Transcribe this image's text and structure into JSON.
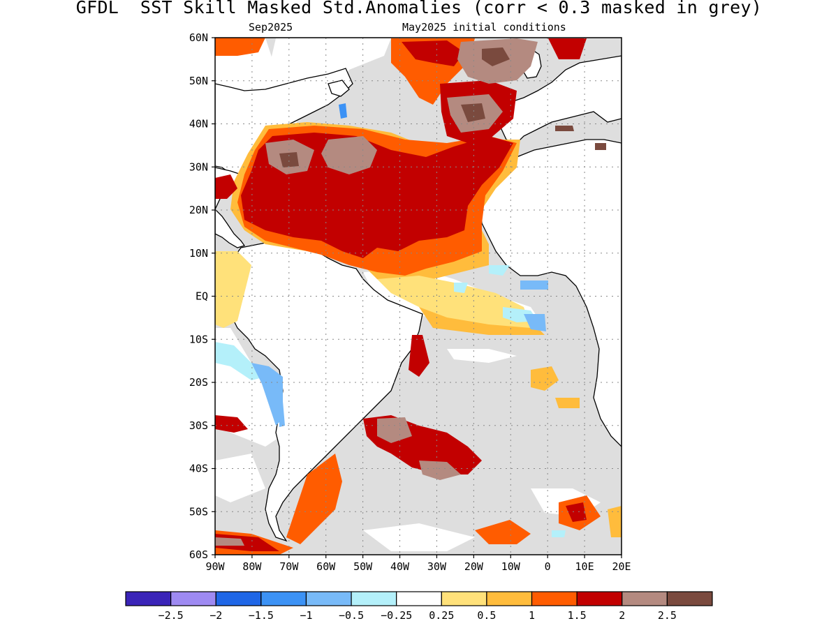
{
  "header": {
    "title": "GFDL  SST Skill Masked Std.Anomalies (corr < 0.3 masked in grey)",
    "target_month": "Sep2025",
    "init": "May2025 initial conditions"
  },
  "map": {
    "region": "Atlantic Ocean",
    "lat_labels": [
      "60N",
      "50N",
      "40N",
      "30N",
      "20N",
      "10N",
      "EQ",
      "10S",
      "20S",
      "30S",
      "40S",
      "50S",
      "60S"
    ],
    "lat_values": [
      60,
      50,
      40,
      30,
      20,
      10,
      0,
      -10,
      -20,
      -30,
      -40,
      -50,
      -60
    ],
    "lon_labels": [
      "90W",
      "80W",
      "70W",
      "60W",
      "50W",
      "40W",
      "30W",
      "20W",
      "10W",
      "0",
      "10E",
      "20E"
    ],
    "lon_values": [
      -90,
      -80,
      -70,
      -60,
      -50,
      -40,
      -30,
      -20,
      -10,
      0,
      10,
      20
    ],
    "mask_color": "#dedede",
    "land_color": "#ffffff"
  },
  "colorbar": {
    "labels": [
      "−2.5",
      "−2",
      "−1.5",
      "−1",
      "−0.5",
      "−0.25",
      "0.25",
      "0.5",
      "1",
      "1.5",
      "2",
      "2.5"
    ],
    "colors": [
      "#3a24b8",
      "#9e8af2",
      "#1f66e6",
      "#3c92f5",
      "#78baf8",
      "#b4f0fa",
      "#ffffff",
      "#ffe17a",
      "#ffbc3c",
      "#ff5c00",
      "#c20000",
      "#b48a80",
      "#7a4a3e"
    ]
  }
}
